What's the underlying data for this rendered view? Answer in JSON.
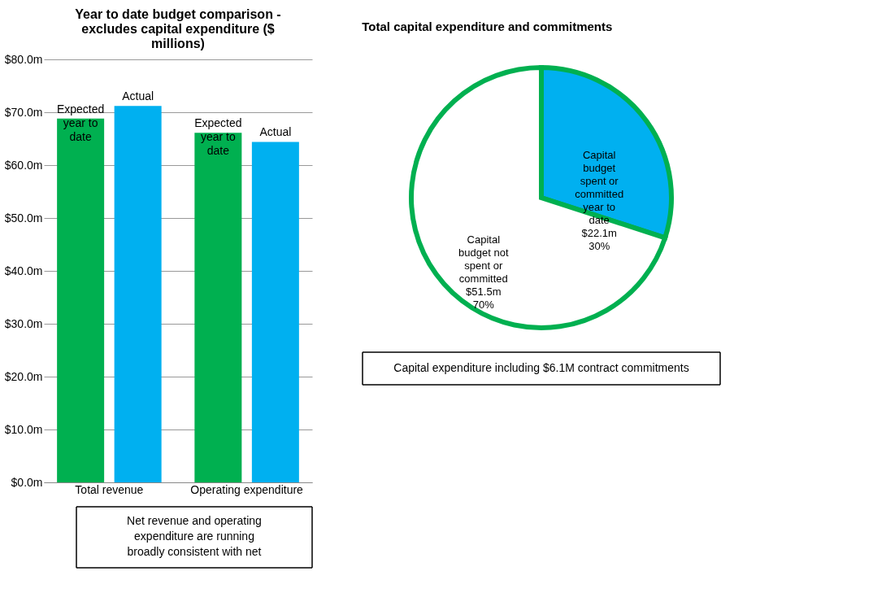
{
  "chart_data": [
    {
      "type": "bar",
      "title": "Year to date budget comparison - excludes capital expenditure ($ millions)",
      "categories": [
        "Total revenue",
        "Operating expenditure"
      ],
      "series": [
        {
          "name": "Expected year to date",
          "color": "#00b050",
          "values": [
            68.8,
            66.1
          ]
        },
        {
          "name": "Actual",
          "color": "#00b0f0",
          "values": [
            71.2,
            64.4
          ]
        }
      ],
      "ylim": [
        0,
        80
      ],
      "yticks": [
        {
          "value": 0,
          "label": "$0.0m"
        },
        {
          "value": 10,
          "label": "$10.0m"
        },
        {
          "value": 20,
          "label": "$20.0m"
        },
        {
          "value": 30,
          "label": "$30.0m"
        },
        {
          "value": 40,
          "label": "$40.0m"
        },
        {
          "value": 50,
          "label": "$50.0m"
        },
        {
          "value": 60,
          "label": "$60.0m"
        },
        {
          "value": 70,
          "label": "$70.0m"
        },
        {
          "value": 80,
          "label": "$80.0m"
        }
      ],
      "grid": "y",
      "annotations": [
        "Net revenue and operating expenditure are running broadly consistent with net"
      ]
    },
    {
      "type": "pie",
      "title": "Total capital expenditure and commitments",
      "categories": [
        "Capital budget spent or committed year to date $22.1m",
        "Capital budget not spent or committed $51.5m"
      ],
      "values": [
        30,
        70
      ],
      "colors": [
        "#00b0f0",
        "#ffffff"
      ],
      "value_labels": [
        "30%",
        "70%"
      ],
      "annotations": [
        "Capital expenditure including $6.1M contract commitments"
      ]
    }
  ]
}
